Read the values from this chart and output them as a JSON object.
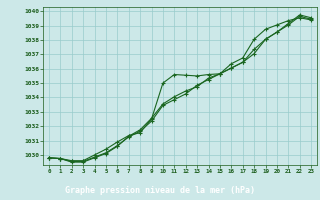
{
  "title": "Graphe pression niveau de la mer (hPa)",
  "xlabel_ticks": [
    0,
    1,
    2,
    3,
    4,
    5,
    6,
    7,
    8,
    9,
    10,
    11,
    12,
    13,
    14,
    15,
    16,
    17,
    18,
    19,
    20,
    21,
    22,
    23
  ],
  "ylim": [
    1029.3,
    1040.3
  ],
  "yticks": [
    1030,
    1031,
    1032,
    1033,
    1034,
    1035,
    1036,
    1037,
    1038,
    1039,
    1040
  ],
  "bg_color": "#cce8e8",
  "grid_color": "#99cccc",
  "line_color": "#1a6620",
  "text_color": "#1a5c1a",
  "title_bg": "#2d7a2d",
  "line1": [
    1029.8,
    1029.75,
    1029.6,
    1029.6,
    1030.0,
    1030.4,
    1030.9,
    1031.35,
    1031.55,
    1032.5,
    1035.0,
    1035.6,
    1035.55,
    1035.5,
    1035.6,
    1035.65,
    1036.35,
    1036.75,
    1038.05,
    1038.75,
    1039.05,
    1039.35,
    1039.55,
    1039.4
  ],
  "line2": [
    1029.8,
    1029.75,
    1029.55,
    1029.55,
    1029.85,
    1030.15,
    1030.65,
    1031.25,
    1031.65,
    1032.35,
    1033.45,
    1033.85,
    1034.25,
    1034.85,
    1035.25,
    1035.65,
    1036.05,
    1036.45,
    1037.35,
    1038.05,
    1038.55,
    1039.05,
    1039.65,
    1039.45
  ],
  "line3": [
    1029.8,
    1029.75,
    1029.5,
    1029.5,
    1029.8,
    1030.1,
    1030.6,
    1031.3,
    1031.75,
    1032.55,
    1033.55,
    1034.05,
    1034.45,
    1034.75,
    1035.35,
    1035.65,
    1036.05,
    1036.45,
    1037.05,
    1038.05,
    1038.55,
    1039.15,
    1039.75,
    1039.55
  ]
}
